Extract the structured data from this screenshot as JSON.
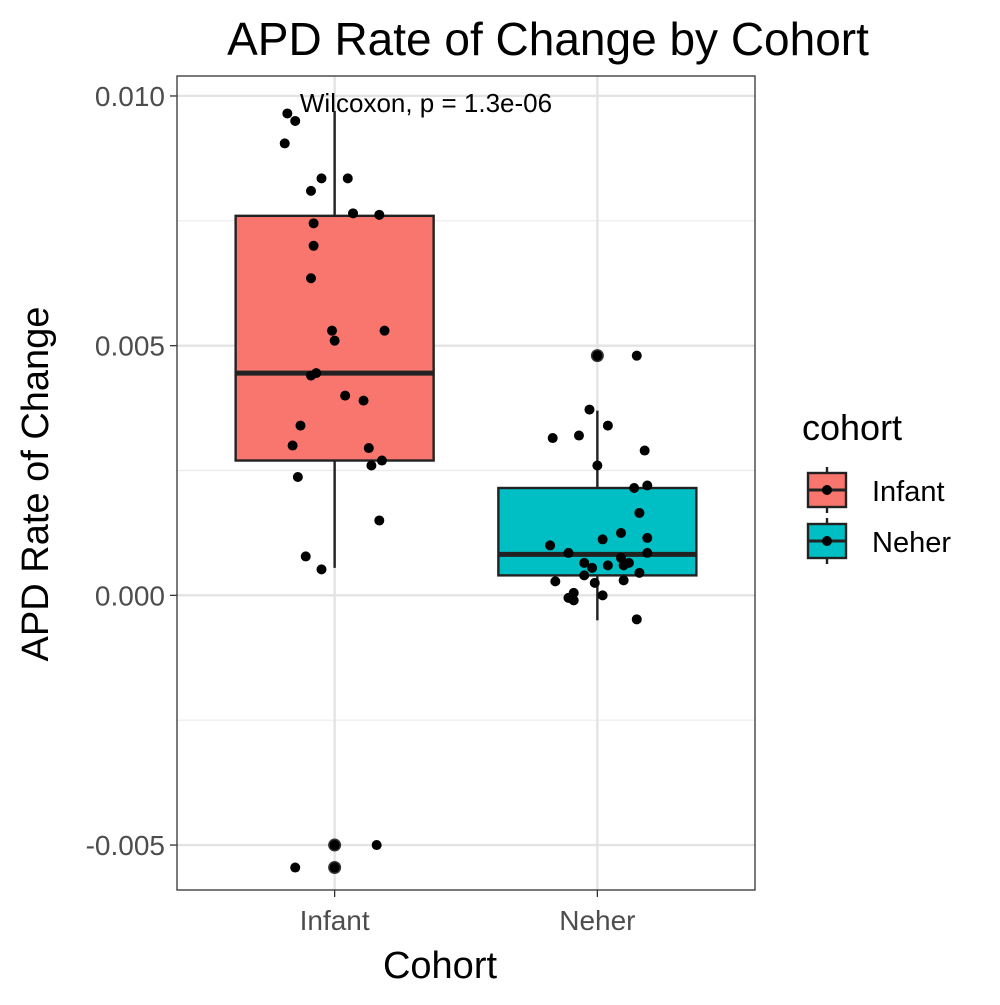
{
  "chart_data": {
    "type": "boxplot",
    "title": "APD Rate of Change by Cohort",
    "xlabel": "Cohort",
    "ylabel": "APD Rate of Change",
    "ylim": [
      -0.0059,
      0.0104
    ],
    "y_ticks": [
      -0.005,
      0.0,
      0.005,
      0.01
    ],
    "y_tick_labels": [
      "-0.005",
      "0.000",
      "0.005",
      "0.010"
    ],
    "grid": true,
    "annotation": "Wilcoxon, p = 1.3e-06",
    "categories": [
      "Infant",
      "Neher"
    ],
    "legend": {
      "title": "cohort",
      "position": "right",
      "entries": [
        {
          "label": "Infant",
          "color": "#F8766D"
        },
        {
          "label": "Neher",
          "color": "#00BFC4"
        }
      ]
    },
    "boxes": [
      {
        "name": "Infant",
        "color": "#F8766D",
        "whisker_low": 0.00055,
        "q1": 0.0027,
        "median": 0.00445,
        "q3": 0.0076,
        "whisker_high": 0.0097,
        "outliers": [
          -0.005,
          -0.00545
        ],
        "points": [
          {
            "x": 0.82,
            "y": 0.00965
          },
          {
            "x": 0.85,
            "y": 0.0095
          },
          {
            "x": 0.81,
            "y": 0.00905
          },
          {
            "x": 0.95,
            "y": 0.00835
          },
          {
            "x": 1.05,
            "y": 0.00835
          },
          {
            "x": 0.91,
            "y": 0.0081
          },
          {
            "x": 1.07,
            "y": 0.00765
          },
          {
            "x": 1.17,
            "y": 0.00762
          },
          {
            "x": 0.92,
            "y": 0.00745
          },
          {
            "x": 0.92,
            "y": 0.007
          },
          {
            "x": 0.91,
            "y": 0.00635
          },
          {
            "x": 0.99,
            "y": 0.0053
          },
          {
            "x": 1.19,
            "y": 0.0053
          },
          {
            "x": 1.0,
            "y": 0.0051
          },
          {
            "x": 0.93,
            "y": 0.00445
          },
          {
            "x": 0.91,
            "y": 0.0044
          },
          {
            "x": 1.04,
            "y": 0.004
          },
          {
            "x": 1.11,
            "y": 0.0039
          },
          {
            "x": 0.87,
            "y": 0.0034
          },
          {
            "x": 0.84,
            "y": 0.003
          },
          {
            "x": 1.13,
            "y": 0.00295
          },
          {
            "x": 1.18,
            "y": 0.0027
          },
          {
            "x": 1.14,
            "y": 0.0026
          },
          {
            "x": 0.86,
            "y": 0.00237
          },
          {
            "x": 1.17,
            "y": 0.0015
          },
          {
            "x": 0.89,
            "y": 0.00078
          },
          {
            "x": 0.95,
            "y": 0.00052
          },
          {
            "x": 1.0,
            "y": -0.005
          },
          {
            "x": 1.16,
            "y": -0.005
          },
          {
            "x": 0.85,
            "y": -0.00545
          },
          {
            "x": 1.0,
            "y": -0.00545
          }
        ]
      },
      {
        "name": "Neher",
        "color": "#00BFC4",
        "whisker_low": -0.0005,
        "q1": 0.0004,
        "median": 0.00082,
        "q3": 0.00215,
        "whisker_high": 0.0037,
        "outliers": [
          0.0048
        ],
        "points": [
          {
            "x": 2.0,
            "y": 0.0048
          },
          {
            "x": 2.15,
            "y": 0.0048
          },
          {
            "x": 1.97,
            "y": 0.00372
          },
          {
            "x": 2.04,
            "y": 0.0034
          },
          {
            "x": 1.83,
            "y": 0.00315
          },
          {
            "x": 1.93,
            "y": 0.0032
          },
          {
            "x": 2.18,
            "y": 0.0029
          },
          {
            "x": 2.0,
            "y": 0.0026
          },
          {
            "x": 2.19,
            "y": 0.0022
          },
          {
            "x": 2.14,
            "y": 0.00215
          },
          {
            "x": 2.16,
            "y": 0.00165
          },
          {
            "x": 2.09,
            "y": 0.00125
          },
          {
            "x": 2.02,
            "y": 0.00112
          },
          {
            "x": 2.19,
            "y": 0.00115
          },
          {
            "x": 1.82,
            "y": 0.001
          },
          {
            "x": 1.89,
            "y": 0.00085
          },
          {
            "x": 2.19,
            "y": 0.00085
          },
          {
            "x": 2.09,
            "y": 0.00075
          },
          {
            "x": 1.95,
            "y": 0.00065
          },
          {
            "x": 2.04,
            "y": 0.0006
          },
          {
            "x": 2.1,
            "y": 0.0006
          },
          {
            "x": 1.98,
            "y": 0.00055
          },
          {
            "x": 2.12,
            "y": 0.00065
          },
          {
            "x": 2.16,
            "y": 0.00045
          },
          {
            "x": 1.95,
            "y": 0.0004
          },
          {
            "x": 2.1,
            "y": 0.0003
          },
          {
            "x": 1.84,
            "y": 0.00028
          },
          {
            "x": 1.99,
            "y": 0.00025
          },
          {
            "x": 1.91,
            "y": 5e-05
          },
          {
            "x": 2.02,
            "y": 0.0
          },
          {
            "x": 1.89,
            "y": -5e-05
          },
          {
            "x": 1.91,
            "y": -0.0001
          },
          {
            "x": 2.15,
            "y": -0.00048
          }
        ]
      }
    ]
  }
}
